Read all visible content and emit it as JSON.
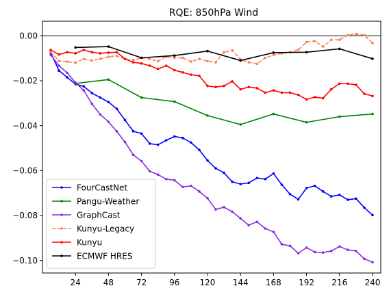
{
  "chart_data": {
    "type": "line",
    "title": "RQE: 850hPa Wind",
    "xlabel": "",
    "ylabel": "",
    "xlim": [
      0,
      246
    ],
    "ylim": [
      -0.1056,
      0.0065
    ],
    "x_ticks": [
      24,
      48,
      72,
      96,
      120,
      144,
      168,
      192,
      216,
      240
    ],
    "y_ticks": [
      0.0,
      -0.02,
      -0.04,
      -0.06,
      -0.08,
      -0.1
    ],
    "y_tick_labels": [
      "0.00",
      "−0.02",
      "−0.04",
      "−0.06",
      "−0.08",
      "−0.10"
    ],
    "zero_line": true,
    "grid": false,
    "legend_position": "lower-left",
    "series": [
      {
        "name": "FourCastNet",
        "color": "#0000ff",
        "style": "solid",
        "x": [
          6,
          12,
          18,
          24,
          30,
          36,
          42,
          48,
          54,
          60,
          66,
          72,
          78,
          84,
          90,
          96,
          102,
          108,
          114,
          120,
          126,
          132,
          138,
          144,
          150,
          156,
          162,
          168,
          174,
          180,
          186,
          192,
          198,
          204,
          210,
          216,
          222,
          228,
          234,
          240
        ],
        "y": [
          -0.0075,
          -0.0155,
          -0.0185,
          -0.0215,
          -0.0225,
          -0.0255,
          -0.0275,
          -0.0295,
          -0.0325,
          -0.0375,
          -0.0425,
          -0.0435,
          -0.048,
          -0.0485,
          -0.0465,
          -0.0448,
          -0.0455,
          -0.0475,
          -0.0508,
          -0.0555,
          -0.059,
          -0.061,
          -0.065,
          -0.066,
          -0.0655,
          -0.0633,
          -0.0638,
          -0.0613,
          -0.0663,
          -0.0705,
          -0.0728,
          -0.0678,
          -0.0668,
          -0.0693,
          -0.0715,
          -0.0708,
          -0.073,
          -0.0725,
          -0.0765,
          -0.0798
        ]
      },
      {
        "name": "Pangu-Weather",
        "color": "#008000",
        "style": "solid",
        "x": [
          24,
          48,
          72,
          96,
          120,
          144,
          168,
          192,
          216,
          240
        ],
        "y": [
          -0.0212,
          -0.0195,
          -0.0275,
          -0.0293,
          -0.0355,
          -0.0395,
          -0.0348,
          -0.0385,
          -0.036,
          -0.0348
        ]
      },
      {
        "name": "GraphCast",
        "color": "#8a2be2",
        "style": "solid",
        "x": [
          6,
          12,
          18,
          24,
          30,
          36,
          42,
          48,
          54,
          60,
          66,
          72,
          78,
          84,
          90,
          96,
          102,
          108,
          114,
          120,
          126,
          132,
          138,
          144,
          150,
          156,
          162,
          168,
          174,
          180,
          186,
          192,
          198,
          204,
          210,
          216,
          222,
          228,
          234,
          240
        ],
        "y": [
          -0.0085,
          -0.0133,
          -0.0165,
          -0.0208,
          -0.0243,
          -0.0303,
          -0.035,
          -0.0383,
          -0.0425,
          -0.0473,
          -0.053,
          -0.0558,
          -0.0603,
          -0.0618,
          -0.0638,
          -0.0643,
          -0.0673,
          -0.0668,
          -0.0693,
          -0.0723,
          -0.0773,
          -0.0763,
          -0.0783,
          -0.0813,
          -0.0843,
          -0.0828,
          -0.0858,
          -0.0873,
          -0.0928,
          -0.0935,
          -0.0968,
          -0.0943,
          -0.0963,
          -0.0965,
          -0.0958,
          -0.0938,
          -0.0953,
          -0.0958,
          -0.0993,
          -0.1008
        ]
      },
      {
        "name": "Kunyu-Legacy",
        "color": "#ff7f50",
        "style": "dashed",
        "x": [
          6,
          12,
          18,
          24,
          30,
          36,
          42,
          48,
          54,
          60,
          66,
          72,
          78,
          84,
          90,
          96,
          102,
          108,
          114,
          120,
          126,
          132,
          138,
          144,
          150,
          156,
          162,
          168,
          174,
          180,
          186,
          192,
          198,
          204,
          210,
          216,
          222,
          228,
          234,
          240
        ],
        "y": [
          -0.0072,
          -0.0112,
          -0.0115,
          -0.012,
          -0.0103,
          -0.011,
          -0.0103,
          -0.0093,
          -0.009,
          -0.0103,
          -0.0108,
          -0.0098,
          -0.0103,
          -0.0113,
          -0.0093,
          -0.0098,
          -0.0098,
          -0.0115,
          -0.0103,
          -0.0113,
          -0.0118,
          -0.0073,
          -0.0065,
          -0.0105,
          -0.0118,
          -0.0125,
          -0.0098,
          -0.0085,
          -0.0078,
          -0.0073,
          -0.0063,
          -0.0028,
          -0.0023,
          -0.0048,
          -0.0018,
          -0.0018,
          0.0003,
          0.0008,
          0.0003,
          -0.0033
        ]
      },
      {
        "name": "Kunyu",
        "color": "#ff0000",
        "style": "solid",
        "x": [
          6,
          12,
          18,
          24,
          30,
          36,
          42,
          48,
          54,
          60,
          66,
          72,
          78,
          84,
          90,
          96,
          102,
          108,
          114,
          120,
          126,
          132,
          138,
          144,
          150,
          156,
          162,
          168,
          174,
          180,
          186,
          192,
          198,
          204,
          210,
          216,
          222,
          228,
          234,
          240
        ],
        "y": [
          -0.0063,
          -0.0083,
          -0.0073,
          -0.0078,
          -0.0063,
          -0.0073,
          -0.0078,
          -0.0075,
          -0.0073,
          -0.0103,
          -0.0118,
          -0.0123,
          -0.0133,
          -0.0148,
          -0.0133,
          -0.0153,
          -0.0163,
          -0.0173,
          -0.0178,
          -0.0223,
          -0.0228,
          -0.0223,
          -0.0203,
          -0.0238,
          -0.0228,
          -0.0233,
          -0.0253,
          -0.0243,
          -0.0253,
          -0.0253,
          -0.0263,
          -0.0283,
          -0.0273,
          -0.0278,
          -0.0238,
          -0.0213,
          -0.0213,
          -0.0218,
          -0.0258,
          -0.0268
        ]
      },
      {
        "name": "ECMWF HRES",
        "color": "#000000",
        "style": "solid",
        "x": [
          24,
          48,
          72,
          96,
          120,
          144,
          168,
          192,
          216,
          240
        ],
        "y": [
          -0.0052,
          -0.0048,
          -0.0098,
          -0.0088,
          -0.0068,
          -0.011,
          -0.0075,
          -0.0073,
          -0.0058,
          -0.0102
        ]
      }
    ]
  }
}
